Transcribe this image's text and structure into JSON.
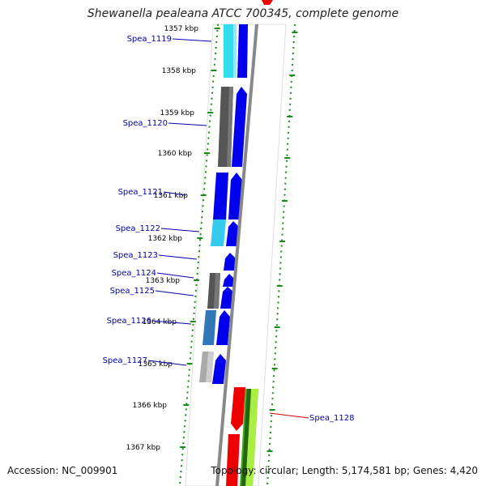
{
  "title": "Shewanella pealeana ATCC 700345, complete genome",
  "footer": {
    "accession": "Accession: NC_009901",
    "summary": "Topology: circular; Length: 5,174,581 bp; Genes: 4,420"
  },
  "ticks": [
    "1357 kbp",
    "1358 kbp",
    "1359 kbp",
    "1360 kbp",
    "1361 kbp",
    "1362 kbp",
    "1363 kbp",
    "1364 kbp",
    "1365 kbp",
    "1366 kbp",
    "1367 kbp"
  ],
  "genes": [
    {
      "label": "Spea_1119",
      "color": "#0000aa"
    },
    {
      "label": "Spea_1120",
      "color": "#0000aa"
    },
    {
      "label": "Spea_1121",
      "color": "#0000aa"
    },
    {
      "label": "Spea_1122",
      "color": "#0000aa"
    },
    {
      "label": "Spea_1123",
      "color": "#0000aa"
    },
    {
      "label": "Spea_1124",
      "color": "#0000aa"
    },
    {
      "label": "Spea_1125",
      "color": "#0000aa"
    },
    {
      "label": "Spea_1126",
      "color": "#0000aa"
    },
    {
      "label": "Spea_1127",
      "color": "#0000aa"
    },
    {
      "label": "Spea_1128",
      "color": "#cc0000"
    }
  ],
  "colors": {
    "forward_cds": "#0000ee",
    "reverse_cds": "#cc0000",
    "backbone": "#888888",
    "dotted_ring": "#1a8a1a",
    "cog_cyan": "#33ddee",
    "cog_gray": "#555555",
    "cog_steel": "#3377bb",
    "cog_green": "#44aa22"
  }
}
